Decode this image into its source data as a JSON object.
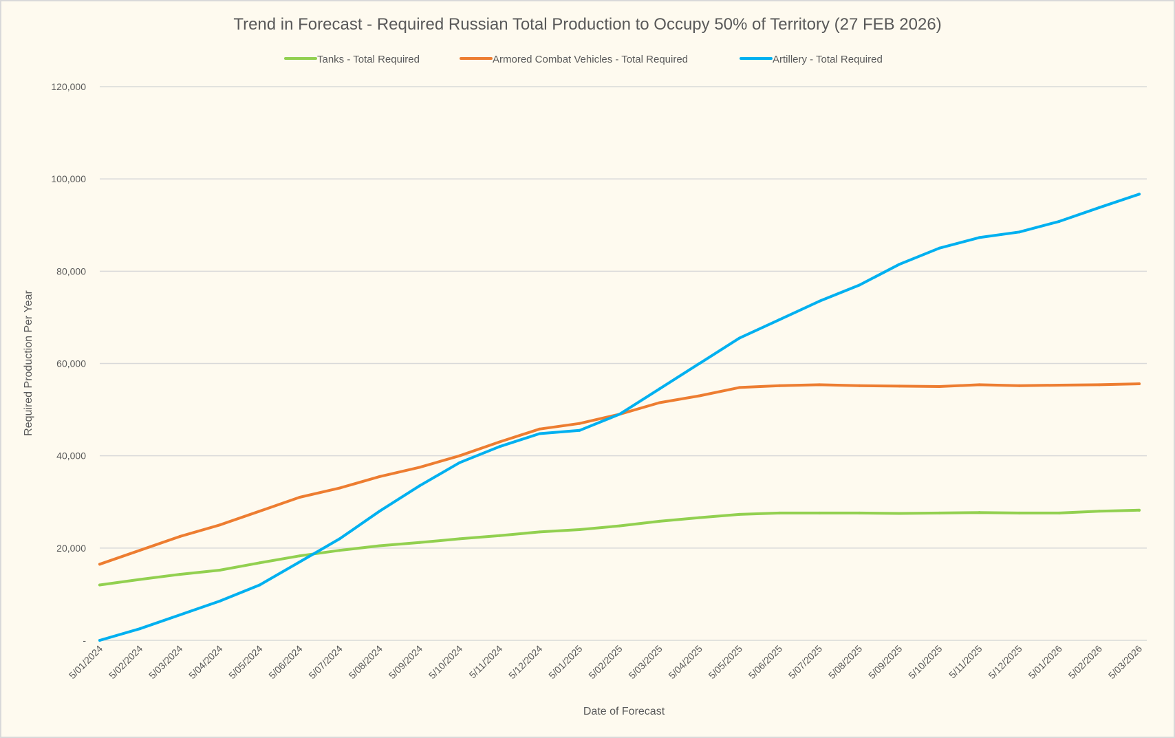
{
  "chart_data": {
    "type": "line",
    "title": "Trend in Forecast - Required Russian Total Production to Occupy 50% of Territory (27 FEB 2026)",
    "xlabel": "Date of Forecast",
    "ylabel": "Required Production Per Year",
    "ylim": [
      0,
      120000
    ],
    "yticks": [
      0,
      20000,
      40000,
      60000,
      80000,
      100000,
      120000
    ],
    "ytick_labels": [
      "-",
      "20,000",
      "40,000",
      "60,000",
      "80,000",
      "100,000",
      "120,000"
    ],
    "grid": true,
    "legend_position": "top",
    "categories": [
      "5/01/2024",
      "5/02/2024",
      "5/03/2024",
      "5/04/2024",
      "5/05/2024",
      "5/06/2024",
      "5/07/2024",
      "5/08/2024",
      "5/09/2024",
      "5/10/2024",
      "5/11/2024",
      "5/12/2024",
      "5/01/2025",
      "5/02/2025",
      "5/03/2025",
      "5/04/2025",
      "5/05/2025",
      "5/06/2025",
      "5/07/2025",
      "5/08/2025",
      "5/09/2025",
      "5/10/2025",
      "5/11/2025",
      "5/12/2025",
      "5/01/2026",
      "5/02/2026",
      "5/03/2026"
    ],
    "series": [
      {
        "name": "Tanks - Total Required",
        "color": "#92D050",
        "values": [
          12000,
          13200,
          14300,
          15200,
          16800,
          18300,
          19500,
          20500,
          21200,
          22000,
          22700,
          23500,
          24000,
          24800,
          25800,
          26600,
          27300,
          27600,
          27600,
          27600,
          27500,
          27600,
          27700,
          27600,
          27600,
          28000,
          28200
        ]
      },
      {
        "name": "Armored Combat Vehicles - Total Required",
        "color": "#ED7D31",
        "values": [
          16500,
          19500,
          22500,
          25000,
          28000,
          31000,
          33000,
          35500,
          37500,
          40000,
          43000,
          45800,
          47000,
          49000,
          51500,
          53000,
          54800,
          55200,
          55400,
          55200,
          55100,
          55000,
          55400,
          55200,
          55300,
          55400,
          55600
        ]
      },
      {
        "name": "Artillery - Total Required",
        "color": "#00B0F0",
        "values": [
          0,
          2500,
          5500,
          8500,
          12000,
          17000,
          22000,
          28000,
          33500,
          38500,
          42000,
          44800,
          45500,
          49000,
          54500,
          60000,
          65500,
          69500,
          73500,
          77000,
          81500,
          85000,
          87300,
          88500,
          90800,
          93800,
          96700
        ]
      }
    ]
  }
}
